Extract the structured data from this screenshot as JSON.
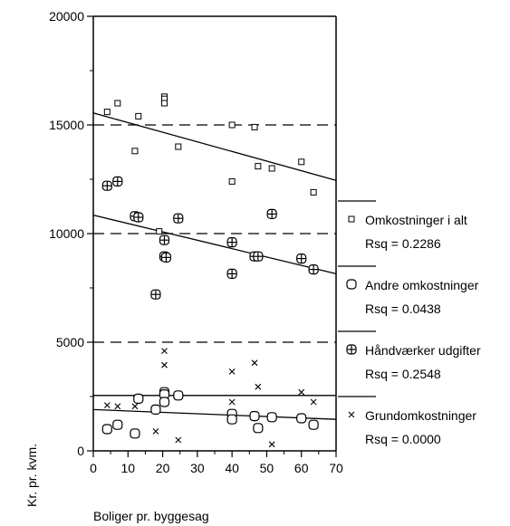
{
  "chart_data": {
    "type": "scatter",
    "title": "",
    "xlabel": "Boliger pr. byggesag",
    "ylabel": "Kr. pr. kvm.",
    "xlim": [
      0,
      70
    ],
    "ylim": [
      0,
      20000
    ],
    "x_ticks": [
      "0",
      "10",
      "20",
      "30",
      "40",
      "50",
      "60",
      "70"
    ],
    "y_ticks": [
      "0",
      "5000",
      "10000",
      "15000",
      "20000"
    ],
    "reference_lines": [
      5000,
      10000,
      15000
    ],
    "grid": false,
    "legend_position": "right",
    "series": [
      {
        "name": "Omkostninger i alt",
        "marker": "square",
        "rsq_label": "Rsq = 0.2286",
        "fit": [
          [
            0,
            15550
          ],
          [
            70,
            12450
          ]
        ],
        "points": [
          [
            4,
            15600
          ],
          [
            7,
            16000
          ],
          [
            12,
            13800
          ],
          [
            13,
            15400
          ],
          [
            19,
            10100
          ],
          [
            20.5,
            16300
          ],
          [
            20.5,
            16200
          ],
          [
            20.5,
            16000
          ],
          [
            24.5,
            14000
          ],
          [
            40,
            15000
          ],
          [
            40,
            12400
          ],
          [
            46.5,
            14900
          ],
          [
            47.5,
            13100
          ],
          [
            51.5,
            13000
          ],
          [
            60,
            13300
          ],
          [
            63.5,
            11900
          ]
        ]
      },
      {
        "name": "Andre omkostninger",
        "marker": "circle",
        "rsq_label": "Rsq = 0.0438",
        "fit": [
          [
            0,
            1900
          ],
          [
            70,
            1450
          ]
        ],
        "points": [
          [
            4,
            1000
          ],
          [
            7,
            1200
          ],
          [
            12,
            800
          ],
          [
            13,
            2400
          ],
          [
            18,
            1900
          ],
          [
            20.5,
            2700
          ],
          [
            20.5,
            2600
          ],
          [
            20.5,
            2250
          ],
          [
            24.5,
            2550
          ],
          [
            40,
            1700
          ],
          [
            40,
            1450
          ],
          [
            46.5,
            1600
          ],
          [
            47.5,
            1050
          ],
          [
            51.5,
            1550
          ],
          [
            60,
            1500
          ],
          [
            63.5,
            1200
          ]
        ]
      },
      {
        "name": "Håndværker udgifter",
        "marker": "square-plus",
        "rsq_label": "Rsq = 0.2548",
        "fit": [
          [
            0,
            10850
          ],
          [
            70,
            8150
          ]
        ],
        "points": [
          [
            4,
            12200
          ],
          [
            7,
            12400
          ],
          [
            12,
            10800
          ],
          [
            13,
            10750
          ],
          [
            18,
            7200
          ],
          [
            20.5,
            9700
          ],
          [
            20.5,
            8950
          ],
          [
            21,
            8900
          ],
          [
            24.5,
            10700
          ],
          [
            40,
            9600
          ],
          [
            40,
            8150
          ],
          [
            46.5,
            8950
          ],
          [
            47.5,
            8950
          ],
          [
            51.5,
            10900
          ],
          [
            60,
            8850
          ],
          [
            63.5,
            8350
          ]
        ]
      },
      {
        "name": "Grundomkostninger",
        "marker": "x",
        "rsq_label": "Rsq = 0.0000",
        "fit": [
          [
            0,
            2550
          ],
          [
            70,
            2550
          ]
        ],
        "points": [
          [
            4,
            2100
          ],
          [
            7,
            2050
          ],
          [
            12,
            2050
          ],
          [
            18,
            900
          ],
          [
            20.5,
            4600
          ],
          [
            20.5,
            3950
          ],
          [
            24.5,
            500
          ],
          [
            40,
            3650
          ],
          [
            40,
            2250
          ],
          [
            46.5,
            4050
          ],
          [
            47.5,
            2950
          ],
          [
            51.5,
            300
          ],
          [
            60,
            2700
          ],
          [
            63.5,
            2250
          ]
        ]
      }
    ]
  }
}
